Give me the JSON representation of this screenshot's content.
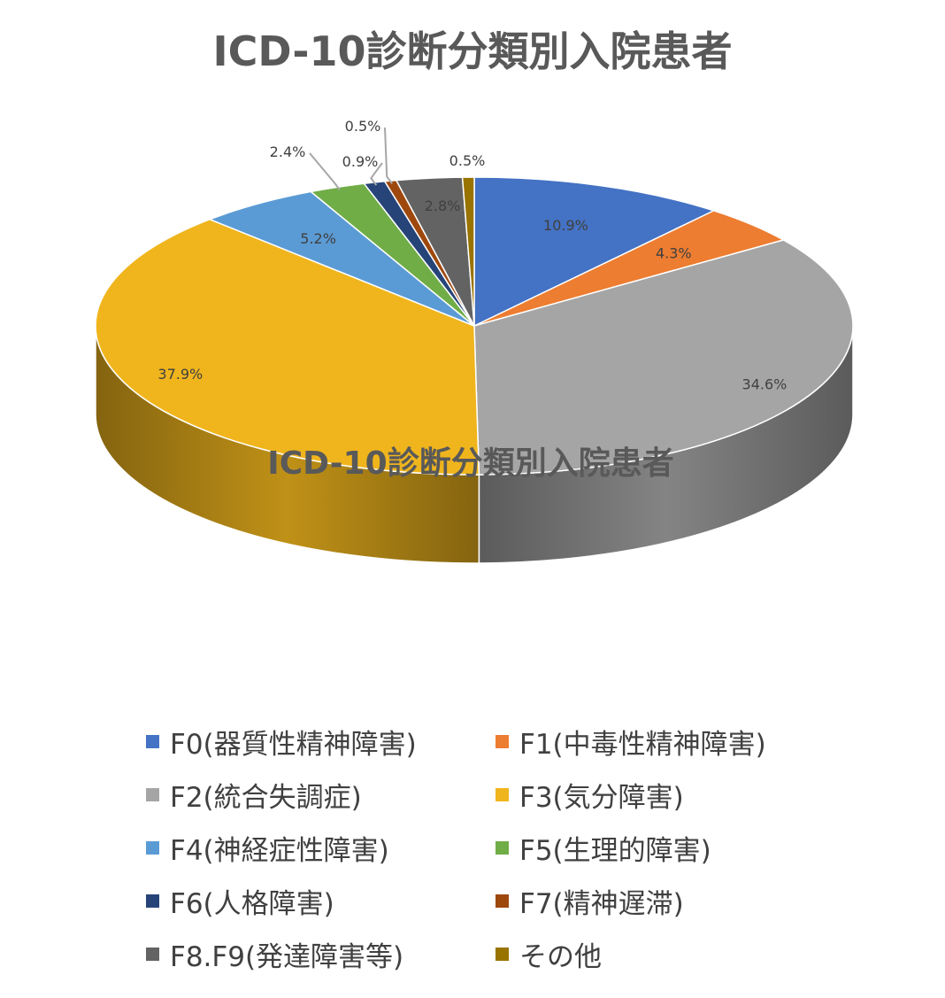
{
  "chart_data": {
    "type": "pie",
    "title": "ICD-10診断分類別入院患者",
    "center_label": "ICD-10診断分類別入院患者",
    "legend_position": "bottom",
    "series": [
      {
        "name": "F0(器質性精神障害)",
        "value": 10.9,
        "label": "10.9%",
        "color": "#4472C4"
      },
      {
        "name": "F1(中毒性精神障害)",
        "value": 4.3,
        "label": "4.3%",
        "color": "#ED7D31"
      },
      {
        "name": "F2(統合失調症)",
        "value": 34.6,
        "label": "34.6%",
        "color": "#A5A5A5"
      },
      {
        "name": "F3(気分障害)",
        "value": 37.9,
        "label": "37.9%",
        "color": "#F0B51D"
      },
      {
        "name": "F4(神経症性障害)",
        "value": 5.2,
        "label": "5.2%",
        "color": "#5B9BD5"
      },
      {
        "name": "F5(生理的障害)",
        "value": 2.4,
        "label": "2.4%",
        "color": "#70AD47"
      },
      {
        "name": "F6(人格障害)",
        "value": 0.9,
        "label": "0.9%",
        "color": "#264478"
      },
      {
        "name": "F7(精神遅滞)",
        "value": 0.5,
        "label": "0.5%",
        "color": "#9E480E"
      },
      {
        "name": "F8.F9(発達障害等)",
        "value": 2.8,
        "label": "2.8%",
        "color": "#636363"
      },
      {
        "name": "その他",
        "value": 0.5,
        "label": "0.5%",
        "color": "#997300"
      }
    ]
  }
}
